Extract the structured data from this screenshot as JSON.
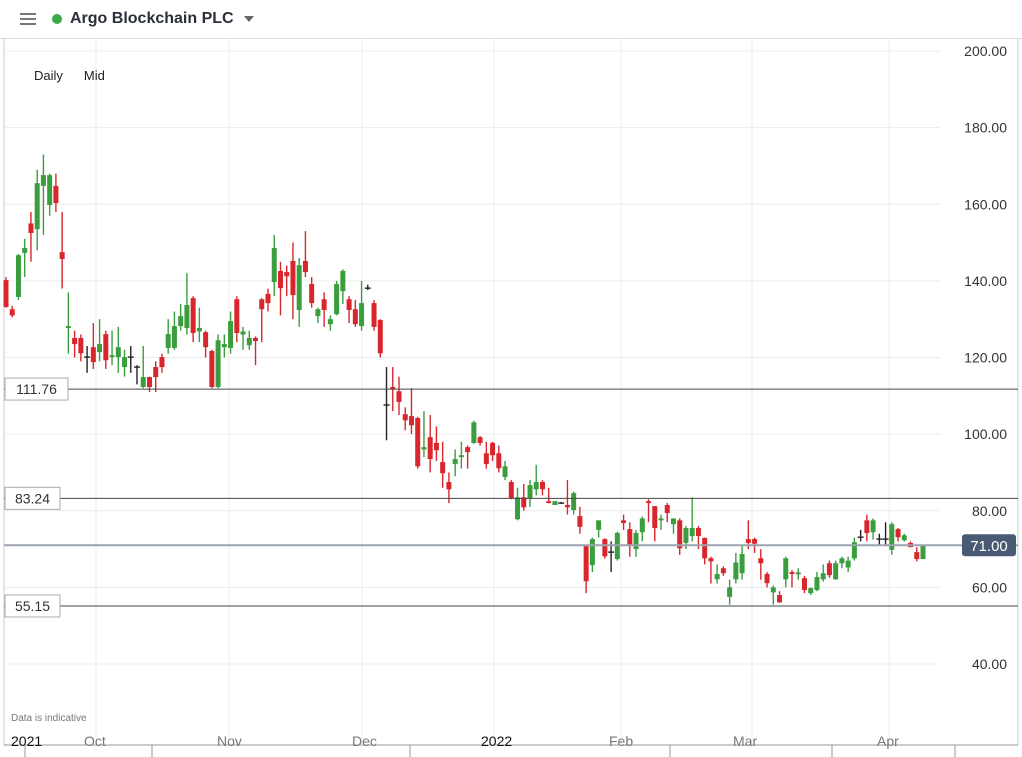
{
  "header": {
    "title": "Argo Blockchain PLC",
    "status_color": "#3aa843",
    "menu_icon": "hamburger-icon",
    "dropdown_icon": "caret-down-icon"
  },
  "options": {
    "interval": "Daily",
    "price_type": "Mid"
  },
  "note": "Data is indicative",
  "chart_data": {
    "type": "candlestick",
    "title": "",
    "ylim": [
      40,
      200
    ],
    "y_ticks": [
      "200.00",
      "180.00",
      "160.00",
      "140.00",
      "120.00",
      "100.00",
      "80.00",
      "60.00",
      "40.00"
    ],
    "x_ticks": [
      "2021",
      "Oct",
      "Nov",
      "Dec",
      "2022",
      "Feb",
      "Mar",
      "Apr"
    ],
    "grid": true,
    "up_color": "#3a9e3f",
    "down_color": "#d9262c",
    "doji_color": "#222222",
    "levels": [
      {
        "value": 111.76,
        "label": "111.76"
      },
      {
        "value": 83.24,
        "label": "83.24"
      },
      {
        "value": 55.15,
        "label": "55.15"
      }
    ],
    "current_price": {
      "value": 71.0,
      "label": "71.00",
      "color": "#4a5a75"
    },
    "ohlc": [
      [
        140.2,
        141,
        133,
        133.2
      ],
      [
        132.6,
        133.5,
        130.5,
        131
      ],
      [
        135.8,
        147,
        135,
        146.7
      ],
      [
        147.3,
        151,
        141,
        148.6
      ],
      [
        155,
        158,
        145,
        152.5
      ],
      [
        153.5,
        169,
        148,
        165.5
      ],
      [
        164.8,
        173,
        152,
        167.6
      ],
      [
        159.8,
        168,
        157,
        167.6
      ],
      [
        164.8,
        168,
        158,
        160.3
      ],
      [
        147.5,
        158,
        138,
        145.7
      ],
      [
        127.7,
        137,
        121,
        128.2
      ],
      [
        125.1,
        127,
        120,
        123.5
      ],
      [
        125.1,
        126,
        119,
        121.1
      ],
      [
        120.1,
        123,
        116,
        120.1
      ],
      [
        122.7,
        129,
        117,
        118.8
      ],
      [
        121.4,
        130,
        119,
        123.5
      ],
      [
        126.1,
        127,
        117,
        119.3
      ],
      [
        120.1,
        127,
        118,
        120.6
      ],
      [
        120.1,
        128,
        116,
        122.7
      ],
      [
        117.5,
        122,
        115,
        120.1
      ],
      [
        120.1,
        123,
        116,
        120.1
      ],
      [
        117.5,
        118,
        113,
        117.5
      ],
      [
        112.3,
        123,
        112,
        114.9
      ],
      [
        114.9,
        115,
        111,
        112.3
      ],
      [
        117.5,
        119,
        111,
        114.9
      ],
      [
        120.1,
        121,
        116,
        117.5
      ],
      [
        122.5,
        130,
        121,
        126.1
      ],
      [
        122.5,
        132,
        122,
        128.2
      ],
      [
        128.2,
        134,
        127,
        130.8
      ],
      [
        127.7,
        142,
        126,
        133.7
      ],
      [
        135.5,
        136,
        124,
        126.4
      ],
      [
        126.8,
        133,
        124,
        127.7
      ],
      [
        126.6,
        127,
        120,
        122.7
      ],
      [
        121.7,
        122,
        112,
        112.3
      ],
      [
        112.3,
        126,
        112,
        124.5
      ],
      [
        122.7,
        126,
        120,
        123.5
      ],
      [
        122.5,
        132,
        121,
        129.5
      ],
      [
        135.2,
        136,
        124,
        126.4
      ],
      [
        126,
        128,
        122,
        126.8
      ],
      [
        123.2,
        127,
        122,
        125.1
      ],
      [
        125.1,
        125.5,
        118,
        124.3
      ],
      [
        135.2,
        135.5,
        124,
        132.6
      ],
      [
        136.6,
        138,
        132,
        134.2
      ],
      [
        139.7,
        152,
        136,
        148.6
      ],
      [
        142.6,
        145,
        131,
        138.1
      ],
      [
        142.3,
        144,
        136,
        141.2
      ],
      [
        145.2,
        150,
        130,
        136.3
      ],
      [
        132.4,
        146,
        128,
        144.1
      ],
      [
        145.2,
        153,
        141,
        142.3
      ],
      [
        139.2,
        141,
        133,
        134.2
      ],
      [
        130.8,
        133,
        129,
        132.6
      ],
      [
        135.2,
        137,
        128,
        132.4
      ],
      [
        128.7,
        131,
        127,
        130
      ],
      [
        131.3,
        140,
        131,
        139.2
      ],
      [
        137.3,
        143,
        134,
        142.6
      ],
      [
        135.2,
        136,
        129,
        132.4
      ],
      [
        132.6,
        135,
        128,
        128.7
      ],
      [
        128.2,
        140,
        127,
        134.2
      ],
      [
        138.1,
        139,
        137.6,
        138.1
      ],
      [
        134.2,
        135,
        127,
        128
      ],
      [
        129.8,
        130,
        120,
        121.1
      ],
      [
        107.6,
        117.5,
        98.4,
        107.6
      ],
      [
        112.3,
        117.5,
        106,
        111.7
      ],
      [
        111.2,
        115,
        105,
        108.4
      ],
      [
        105.2,
        107,
        101,
        103.6
      ],
      [
        104.7,
        112,
        100,
        102.3
      ],
      [
        104.2,
        104.5,
        91,
        91.6
      ],
      [
        96,
        106,
        94,
        96.6
      ],
      [
        99.2,
        105,
        90,
        93.5
      ],
      [
        97.7,
        102,
        93,
        95.8
      ],
      [
        92.7,
        98,
        86,
        89.8
      ],
      [
        87.5,
        90,
        82,
        85.6
      ],
      [
        92.2,
        96,
        89,
        93.5
      ],
      [
        94,
        98,
        91,
        94.5
      ],
      [
        96.6,
        97,
        91,
        95.3
      ],
      [
        97.7,
        103.5,
        97.5,
        103.1
      ],
      [
        99.2,
        99.5,
        97,
        97.7
      ],
      [
        95,
        98,
        91,
        92.2
      ],
      [
        97.7,
        98,
        93,
        94.5
      ],
      [
        95,
        97,
        90,
        91.1
      ],
      [
        88.8,
        93,
        88,
        91.6
      ],
      [
        87.5,
        88,
        83,
        83.3
      ],
      [
        77.8,
        86,
        77.5,
        83.5
      ],
      [
        83.5,
        87,
        80,
        80.9
      ],
      [
        83.3,
        88,
        81,
        86.7
      ],
      [
        85.6,
        92,
        84,
        87.5
      ],
      [
        87.5,
        88,
        84,
        85.6
      ],
      [
        82.5,
        86,
        82,
        82
      ],
      [
        81.5,
        82.5,
        81.5,
        82.5
      ],
      [
        82,
        82.3,
        81.8,
        82
      ],
      [
        81.5,
        88,
        79,
        80.9
      ],
      [
        80.2,
        85,
        79,
        84.6
      ],
      [
        78.6,
        81,
        74,
        75.8
      ],
      [
        71,
        71,
        58.5,
        61.6
      ],
      [
        65.8,
        73,
        64,
        72.6
      ],
      [
        75,
        77.5,
        73,
        77.5
      ],
      [
        72.6,
        72.8,
        67.5,
        68.1
      ],
      [
        69.2,
        72,
        64,
        69.2
      ],
      [
        67.4,
        74.5,
        67,
        74.2
      ],
      [
        77.5,
        79,
        75,
        76.8
      ],
      [
        75.2,
        77,
        68,
        70.8
      ],
      [
        70,
        75,
        68,
        74.2
      ],
      [
        74.4,
        78.5,
        72,
        78
      ],
      [
        82.5,
        83,
        77,
        82
      ],
      [
        81.2,
        81.2,
        72,
        75.5
      ],
      [
        77.5,
        79,
        75,
        78
      ],
      [
        81.5,
        82,
        77,
        79.4
      ],
      [
        76.5,
        78,
        74,
        78
      ],
      [
        77.5,
        78,
        68.5,
        70.2
      ],
      [
        71.6,
        76,
        70,
        75.5
      ],
      [
        73.4,
        83.5,
        72,
        75.5
      ],
      [
        75.5,
        76,
        70,
        73.4
      ],
      [
        72.9,
        73,
        66,
        67.6
      ],
      [
        67.6,
        68,
        61,
        66.8
      ],
      [
        62.1,
        66,
        61,
        63.5
      ],
      [
        65,
        65.5,
        63,
        63.7
      ],
      [
        57.5,
        62,
        55.5,
        60
      ],
      [
        62.1,
        69,
        61,
        66.5
      ],
      [
        63.7,
        71,
        62,
        68.7
      ],
      [
        72.6,
        77.5,
        70,
        71.6
      ],
      [
        72.6,
        73,
        69,
        71.4
      ],
      [
        67.6,
        70,
        62,
        66.3
      ],
      [
        63.5,
        64,
        60,
        61.1
      ],
      [
        58.7,
        60.5,
        55.5,
        60
      ],
      [
        58,
        59,
        56,
        56.1
      ],
      [
        62.1,
        68,
        60,
        67.6
      ],
      [
        64,
        64.5,
        60,
        63.5
      ],
      [
        63.4,
        65,
        62,
        63.9
      ],
      [
        62.4,
        63,
        58.5,
        59.3
      ],
      [
        58.5,
        60,
        58,
        59.8
      ],
      [
        59.3,
        64,
        59,
        62.7
      ],
      [
        62.1,
        66,
        61.5,
        63.7
      ],
      [
        66.3,
        67,
        62.5,
        63.2
      ],
      [
        62.1,
        67,
        62,
        66.3
      ],
      [
        66.3,
        68,
        65,
        67.6
      ],
      [
        65.2,
        68,
        64,
        67
      ],
      [
        67.6,
        73,
        67,
        71.8
      ],
      [
        73.1,
        75,
        72,
        73.1
      ],
      [
        77.5,
        79,
        72,
        74.2
      ],
      [
        74.4,
        78,
        72.5,
        77.5
      ],
      [
        72.6,
        74,
        71,
        72.6
      ],
      [
        72.6,
        77,
        71,
        72.6
      ],
      [
        69.8,
        77,
        68.5,
        76.5
      ],
      [
        75.2,
        75.5,
        72,
        73.1
      ],
      [
        72.3,
        74,
        72,
        73.6
      ],
      [
        71.6,
        72,
        70.5,
        70.5
      ],
      [
        69.2,
        70.5,
        66.8,
        67.4
      ],
      [
        67.4,
        71,
        67.4,
        71
      ]
    ]
  }
}
